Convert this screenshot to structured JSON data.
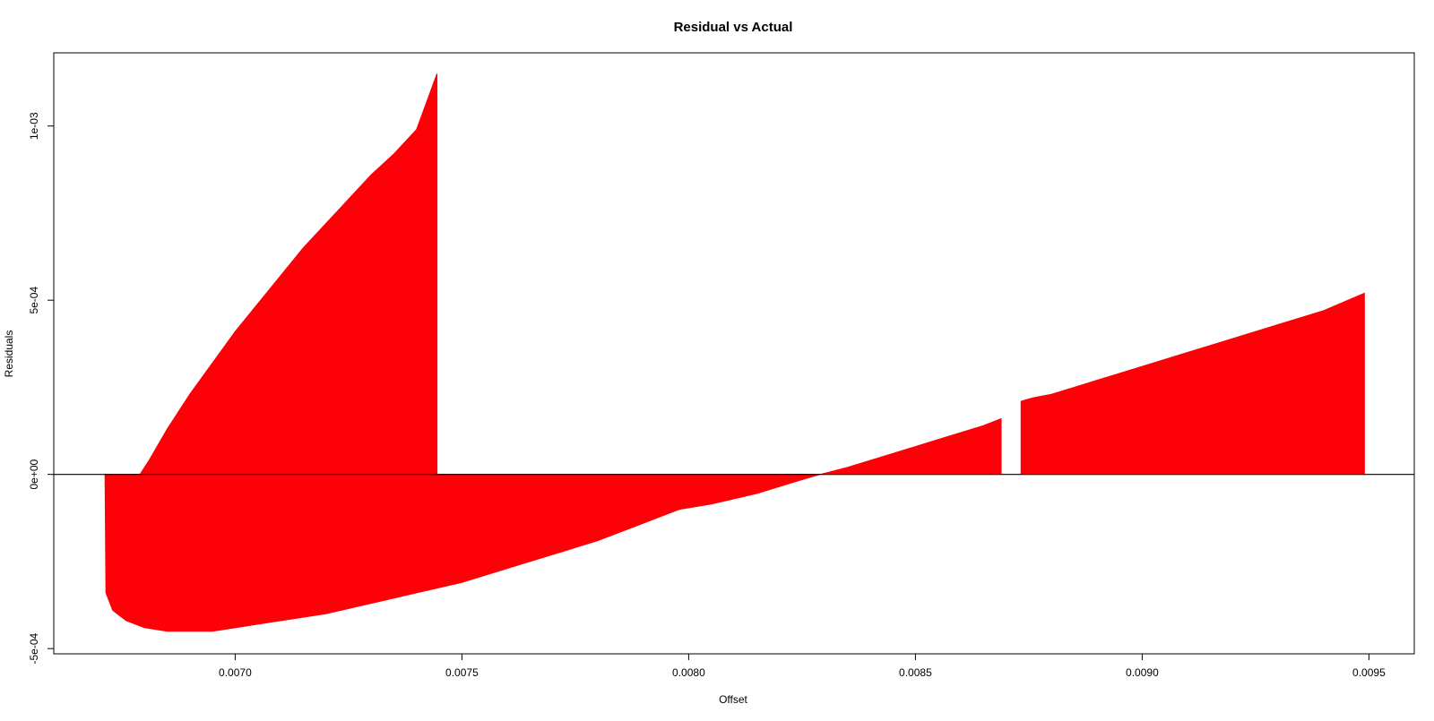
{
  "chart_data": {
    "type": "area",
    "title": "Residual vs Actual",
    "xlabel": "Offset",
    "ylabel": "Residuals",
    "xlim": [
      0.0066,
      0.0096
    ],
    "ylim": [
      -0.000515,
      0.00121
    ],
    "x_ticks": [
      0.007,
      0.0075,
      0.008,
      0.0085,
      0.009,
      0.0095
    ],
    "x_tick_labels": [
      "0.0070",
      "0.0075",
      "0.0080",
      "0.0085",
      "0.0090",
      "0.0095"
    ],
    "y_ticks": [
      -0.0005,
      0.0,
      0.0005,
      0.001
    ],
    "y_tick_labels": [
      "-5e-04",
      "0e+00",
      "5e-04",
      "1e-03"
    ],
    "grid": false,
    "reference_line_y": 0,
    "series": [
      {
        "style": "vertical-bars-from-zero",
        "color": "#fc0107",
        "upper": {
          "x": [
            0.00679,
            0.00681,
            0.00685,
            0.0069,
            0.00695,
            0.007,
            0.00705,
            0.0071,
            0.00715,
            0.0072,
            0.00725,
            0.0073,
            0.00735,
            0.0074,
            0.007445,
            0.00829,
            0.00835,
            0.0084,
            0.00845,
            0.0085,
            0.00855,
            0.0086,
            0.00865,
            0.008689,
            0.008733,
            0.00876,
            0.0088,
            0.00885,
            0.0089,
            0.009,
            0.0091,
            0.0092,
            0.0093,
            0.0094,
            0.00949
          ],
          "y": [
            0.0,
            4e-05,
            0.00013,
            0.00023,
            0.00032,
            0.00041,
            0.00049,
            0.00057,
            0.00065,
            0.00072,
            0.00079,
            0.00086,
            0.00092,
            0.00099,
            0.00115,
            0.0,
            2e-05,
            4e-05,
            6e-05,
            8e-05,
            0.0001,
            0.00012,
            0.00014,
            0.00016,
            0.00021,
            0.00022,
            0.00023,
            0.00025,
            0.00027,
            0.00031,
            0.00035,
            0.00039,
            0.00043,
            0.00047,
            0.00052
          ],
          "gap_after_index": [
            14,
            23
          ]
        },
        "lower": {
          "x": [
            0.006713,
            0.006715,
            0.00673,
            0.00676,
            0.0068,
            0.00685,
            0.0069,
            0.00695,
            0.007,
            0.00705,
            0.0071,
            0.0072,
            0.0073,
            0.0074,
            0.0075,
            0.0076,
            0.0077,
            0.0078,
            0.0079,
            0.00798,
            0.00805,
            0.0081,
            0.00815,
            0.0082,
            0.00825,
            0.00829
          ],
          "y": [
            0.0,
            -0.00034,
            -0.00039,
            -0.00042,
            -0.00044,
            -0.00045,
            -0.00045,
            -0.00045,
            -0.00044,
            -0.00043,
            -0.00042,
            -0.0004,
            -0.00037,
            -0.00034,
            -0.00031,
            -0.00027,
            -0.00023,
            -0.00019,
            -0.00014,
            -0.0001,
            -8.5e-05,
            -7e-05,
            -5.5e-05,
            -3.5e-05,
            -1.5e-05,
            0.0
          ]
        }
      }
    ]
  }
}
